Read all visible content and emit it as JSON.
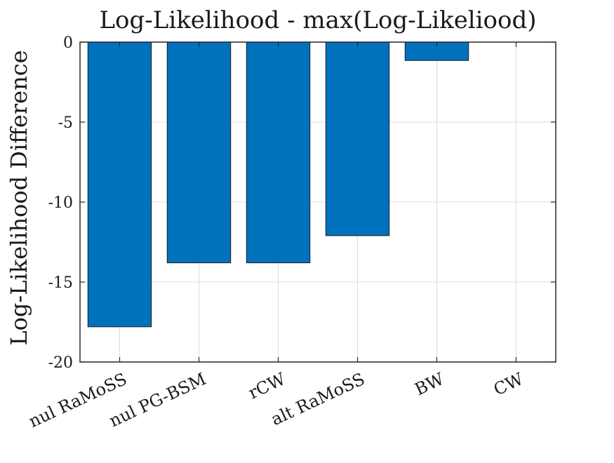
{
  "chart_data": {
    "type": "bar",
    "title": "Log-Likelihood - max(Log-Likeliood)",
    "xlabel": "",
    "ylabel": "Log-Likelihood Difference",
    "categories": [
      "nul RaMoSS",
      "nul PG-BSM",
      "rCW",
      "alt RaMoSS",
      "BW",
      "CW"
    ],
    "values": [
      -17.8,
      -13.8,
      -13.8,
      -12.1,
      -1.15,
      0
    ],
    "ylim": [
      -20,
      0
    ],
    "yticks": [
      0,
      -5,
      -10,
      -15,
      -20
    ],
    "ytick_labels": [
      "0",
      "-5",
      "-10",
      "-15",
      "-20"
    ],
    "grid": true,
    "legend": "none",
    "bar_color": "#0072BD"
  }
}
